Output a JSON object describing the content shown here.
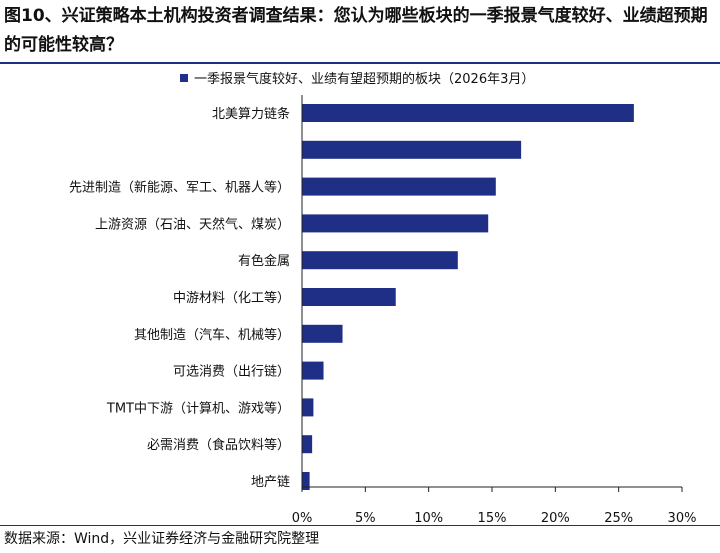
{
  "figure": {
    "title": "图10、兴证策略本土机构投资者调查结果：您认为哪些板块的一季报景气度较好、业绩超预期的可能性较高？",
    "source": "数据来源：Wind，兴业证券经济与金融研究院整理"
  },
  "chart_data": {
    "type": "bar",
    "orientation": "horizontal",
    "categories": [
      "北美算力链条",
      "",
      "先进制造（新能源、军工、机器人等）",
      "上游资源（石油、天然气、煤炭）",
      "有色金属",
      "中游材料（化工等）",
      "其他制造（汽车、机械等）",
      "可选消费（出行链）",
      "TMT中下游（计算机、游戏等）",
      "必需消费（食品饮料等）",
      "地产链"
    ],
    "series": [
      {
        "name": "一季报景气度较好、业绩有望超预期的板块（2026年3月）",
        "values": [
          26.2,
          17.3,
          15.3,
          14.7,
          12.3,
          7.4,
          3.2,
          1.7,
          0.9,
          0.8,
          0.6
        ]
      }
    ],
    "xlim": [
      0,
      30
    ],
    "xticks": [
      "0%",
      "5%",
      "10%",
      "15%",
      "20%",
      "25%",
      "30%"
    ],
    "xtick_values": [
      0,
      5,
      10,
      15,
      20,
      25,
      30
    ],
    "bar_color": "#1f2f86",
    "legend_position": "top",
    "grid": false
  }
}
